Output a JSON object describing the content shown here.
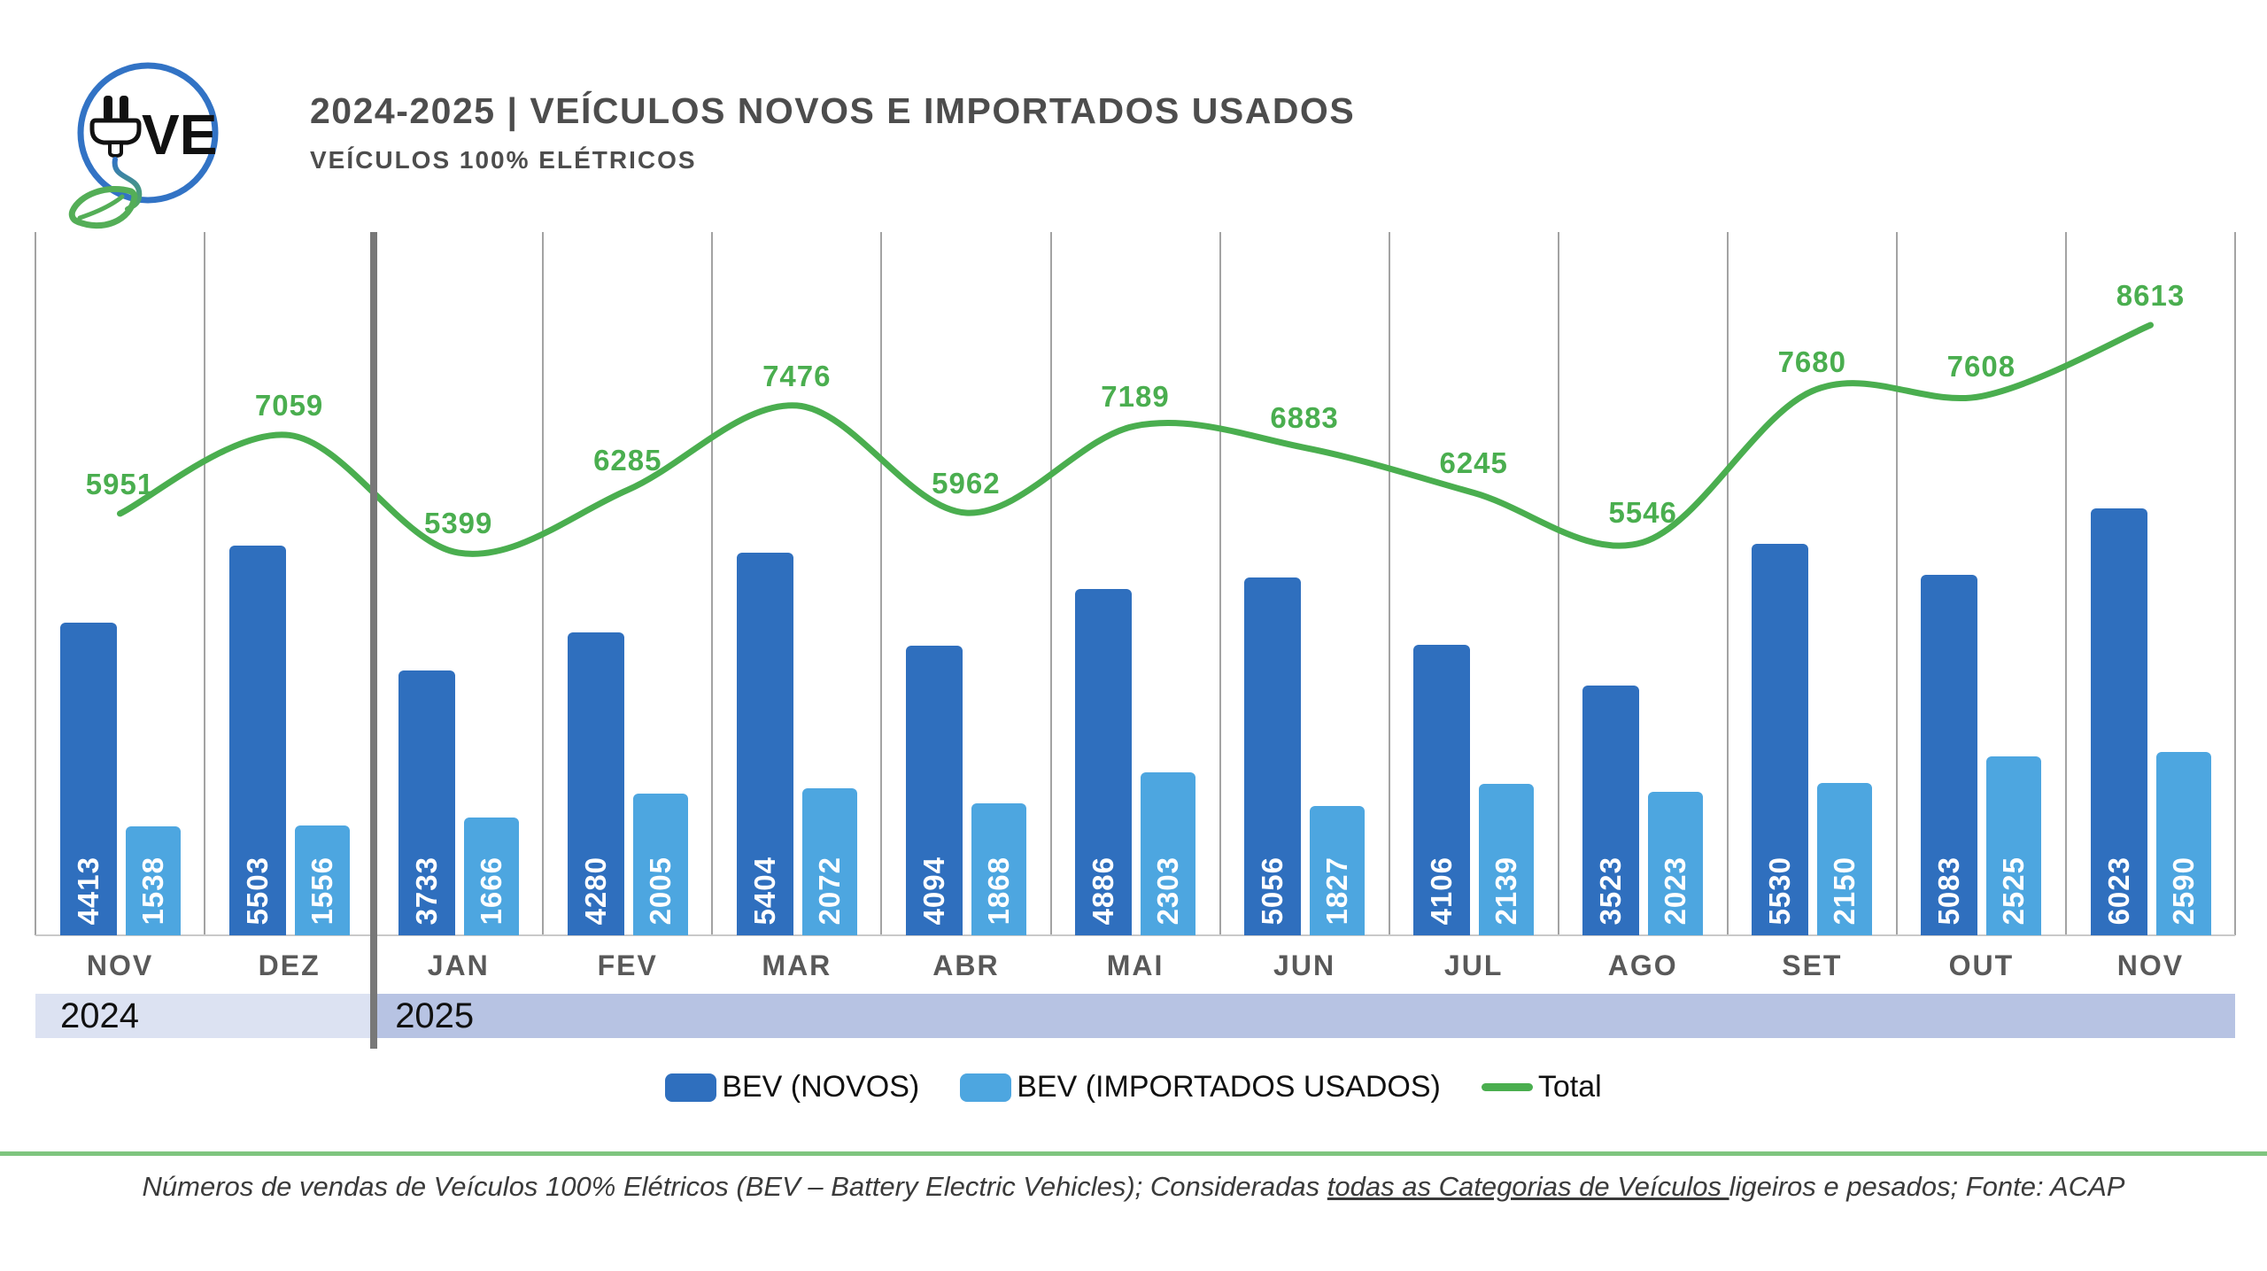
{
  "header": {
    "title": "2024-2025 | VEÍCULOS NOVOS E IMPORTADOS USADOS",
    "subtitle": "VEÍCULOS 100% ELÉTRICOS"
  },
  "logo": {
    "text": "UVE",
    "circle_color": "#3273C5",
    "leaf_color": "#54AE57",
    "plug_color": "#111111"
  },
  "chart_data": {
    "type": "bar",
    "categories": [
      "NOV",
      "DEZ",
      "JAN",
      "FEV",
      "MAR",
      "ABR",
      "MAI",
      "JUN",
      "JUL",
      "AGO",
      "SET",
      "OUT",
      "NOV"
    ],
    "year_bands": [
      {
        "label": "2024",
        "count": 2,
        "bg": "#dce2f2"
      },
      {
        "label": "2025",
        "count": 11,
        "bg": "#b7c3e3"
      }
    ],
    "series": [
      {
        "name": "BEV (NOVOS)",
        "kind": "bar",
        "color": "#2F6FBE",
        "values": [
          4413,
          5503,
          3733,
          4280,
          5404,
          4094,
          4886,
          5056,
          4106,
          3523,
          5530,
          5083,
          6023
        ]
      },
      {
        "name": "BEV (IMPORTADOS USADOS)",
        "kind": "bar",
        "color": "#4DA6E0",
        "values": [
          1538,
          1556,
          1666,
          2005,
          2072,
          1868,
          2303,
          1827,
          2139,
          2023,
          2150,
          2525,
          2590
        ]
      },
      {
        "name": "Total",
        "kind": "line",
        "color": "#4AAE4F",
        "values": [
          5951,
          7059,
          5399,
          6285,
          7476,
          5962,
          7189,
          6883,
          6245,
          5546,
          7680,
          7608,
          8613
        ]
      }
    ],
    "ylim": [
      0,
      9925
    ],
    "grid": "vertical-only",
    "legend_position": "bottom",
    "value_labels": "inside-bar-rotated"
  },
  "footer": {
    "note_prefix": "Números de vendas de Veículos 100% Elétricos (BEV – Battery Electric Vehicles); Consideradas ",
    "note_underlined": "todas as Categorias de Veículos ",
    "note_suffix": "ligeiros e pesados; Fonte: ACAP"
  }
}
